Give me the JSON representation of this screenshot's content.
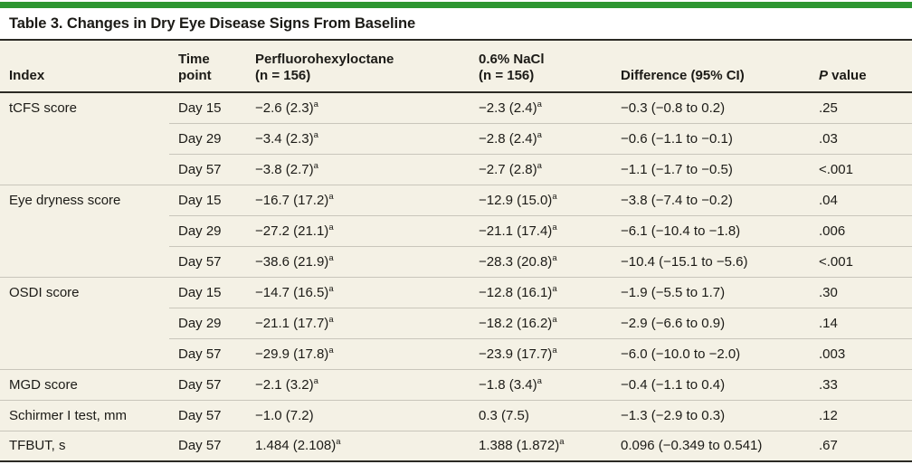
{
  "colors": {
    "accent_bar_green": "#2e9631",
    "table_background": "#f4f1e5",
    "dark_rule": "#2b2a24",
    "row_separator": "#c9c6bb",
    "text": "#1c1b17"
  },
  "title": "Table 3. Changes in Dry Eye Disease Signs From Baseline",
  "header": {
    "col1": "Index",
    "col2_line1": "Time",
    "col2_line2": "point",
    "col3_line1": "Perfluorohexyloctane",
    "col3_line2": "(n = 156)",
    "col4_line1": "0.6% NaCl",
    "col4_line2": "(n = 156)",
    "col5": "Difference (95% CI)",
    "col6_italic": "P",
    "col6_rest": " value"
  },
  "rows": [
    {
      "index": "tCFS score",
      "time": "Day 15",
      "pfho": "−2.6 (2.3)",
      "pfho_sup": "a",
      "nacl": "−2.3 (2.4)",
      "nacl_sup": "a",
      "diff": "−0.3 (−0.8 to 0.2)",
      "p": ".25"
    },
    {
      "index": "",
      "time": "Day 29",
      "pfho": "−3.4 (2.3)",
      "pfho_sup": "a",
      "nacl": "−2.8 (2.4)",
      "nacl_sup": "a",
      "diff": "−0.6 (−1.1 to −0.1)",
      "p": ".03"
    },
    {
      "index": "",
      "time": "Day 57",
      "pfho": "−3.8 (2.7)",
      "pfho_sup": "a",
      "nacl": "−2.7 (2.8)",
      "nacl_sup": "a",
      "diff": "−1.1 (−1.7 to −0.5)",
      "p": "<.001"
    },
    {
      "index": "Eye dryness score",
      "time": "Day 15",
      "pfho": "−16.7 (17.2)",
      "pfho_sup": "a",
      "nacl": "−12.9 (15.0)",
      "nacl_sup": "a",
      "diff": "−3.8 (−7.4 to −0.2)",
      "p": ".04"
    },
    {
      "index": "",
      "time": "Day 29",
      "pfho": "−27.2 (21.1)",
      "pfho_sup": "a",
      "nacl": "−21.1 (17.4)",
      "nacl_sup": "a",
      "diff": "−6.1 (−10.4 to −1.8)",
      "p": ".006"
    },
    {
      "index": "",
      "time": "Day 57",
      "pfho": "−38.6 (21.9)",
      "pfho_sup": "a",
      "nacl": "−28.3 (20.8)",
      "nacl_sup": "a",
      "diff": "−10.4 (−15.1 to −5.6)",
      "p": "<.001"
    },
    {
      "index": "OSDI score",
      "time": "Day 15",
      "pfho": "−14.7 (16.5)",
      "pfho_sup": "a",
      "nacl": "−12.8 (16.1)",
      "nacl_sup": "a",
      "diff": "−1.9 (−5.5 to 1.7)",
      "p": ".30"
    },
    {
      "index": "",
      "time": "Day 29",
      "pfho": "−21.1 (17.7)",
      "pfho_sup": "a",
      "nacl": "−18.2 (16.2)",
      "nacl_sup": "a",
      "diff": "−2.9 (−6.6 to 0.9)",
      "p": ".14"
    },
    {
      "index": "",
      "time": "Day 57",
      "pfho": "−29.9 (17.8)",
      "pfho_sup": "a",
      "nacl": "−23.9 (17.7)",
      "nacl_sup": "a",
      "diff": "−6.0 (−10.0 to −2.0)",
      "p": ".003"
    },
    {
      "index": "MGD score",
      "time": "Day 57",
      "pfho": "−2.1 (3.2)",
      "pfho_sup": "a",
      "nacl": "−1.8 (3.4)",
      "nacl_sup": "a",
      "diff": "−0.4 (−1.1 to 0.4)",
      "p": ".33"
    },
    {
      "index": "Schirmer I test, mm",
      "time": "Day 57",
      "pfho": "−1.0 (7.2)",
      "nacl": "0.3 (7.5)",
      "diff": "−1.3 (−2.9 to 0.3)",
      "p": ".12"
    },
    {
      "index": "TFBUT, s",
      "time": "Day 57",
      "pfho": "1.484 (2.108)",
      "pfho_sup": "a",
      "nacl": "1.388 (1.872)",
      "nacl_sup": "a",
      "diff": "0.096 (−0.349 to 0.541)",
      "p": ".67"
    }
  ]
}
